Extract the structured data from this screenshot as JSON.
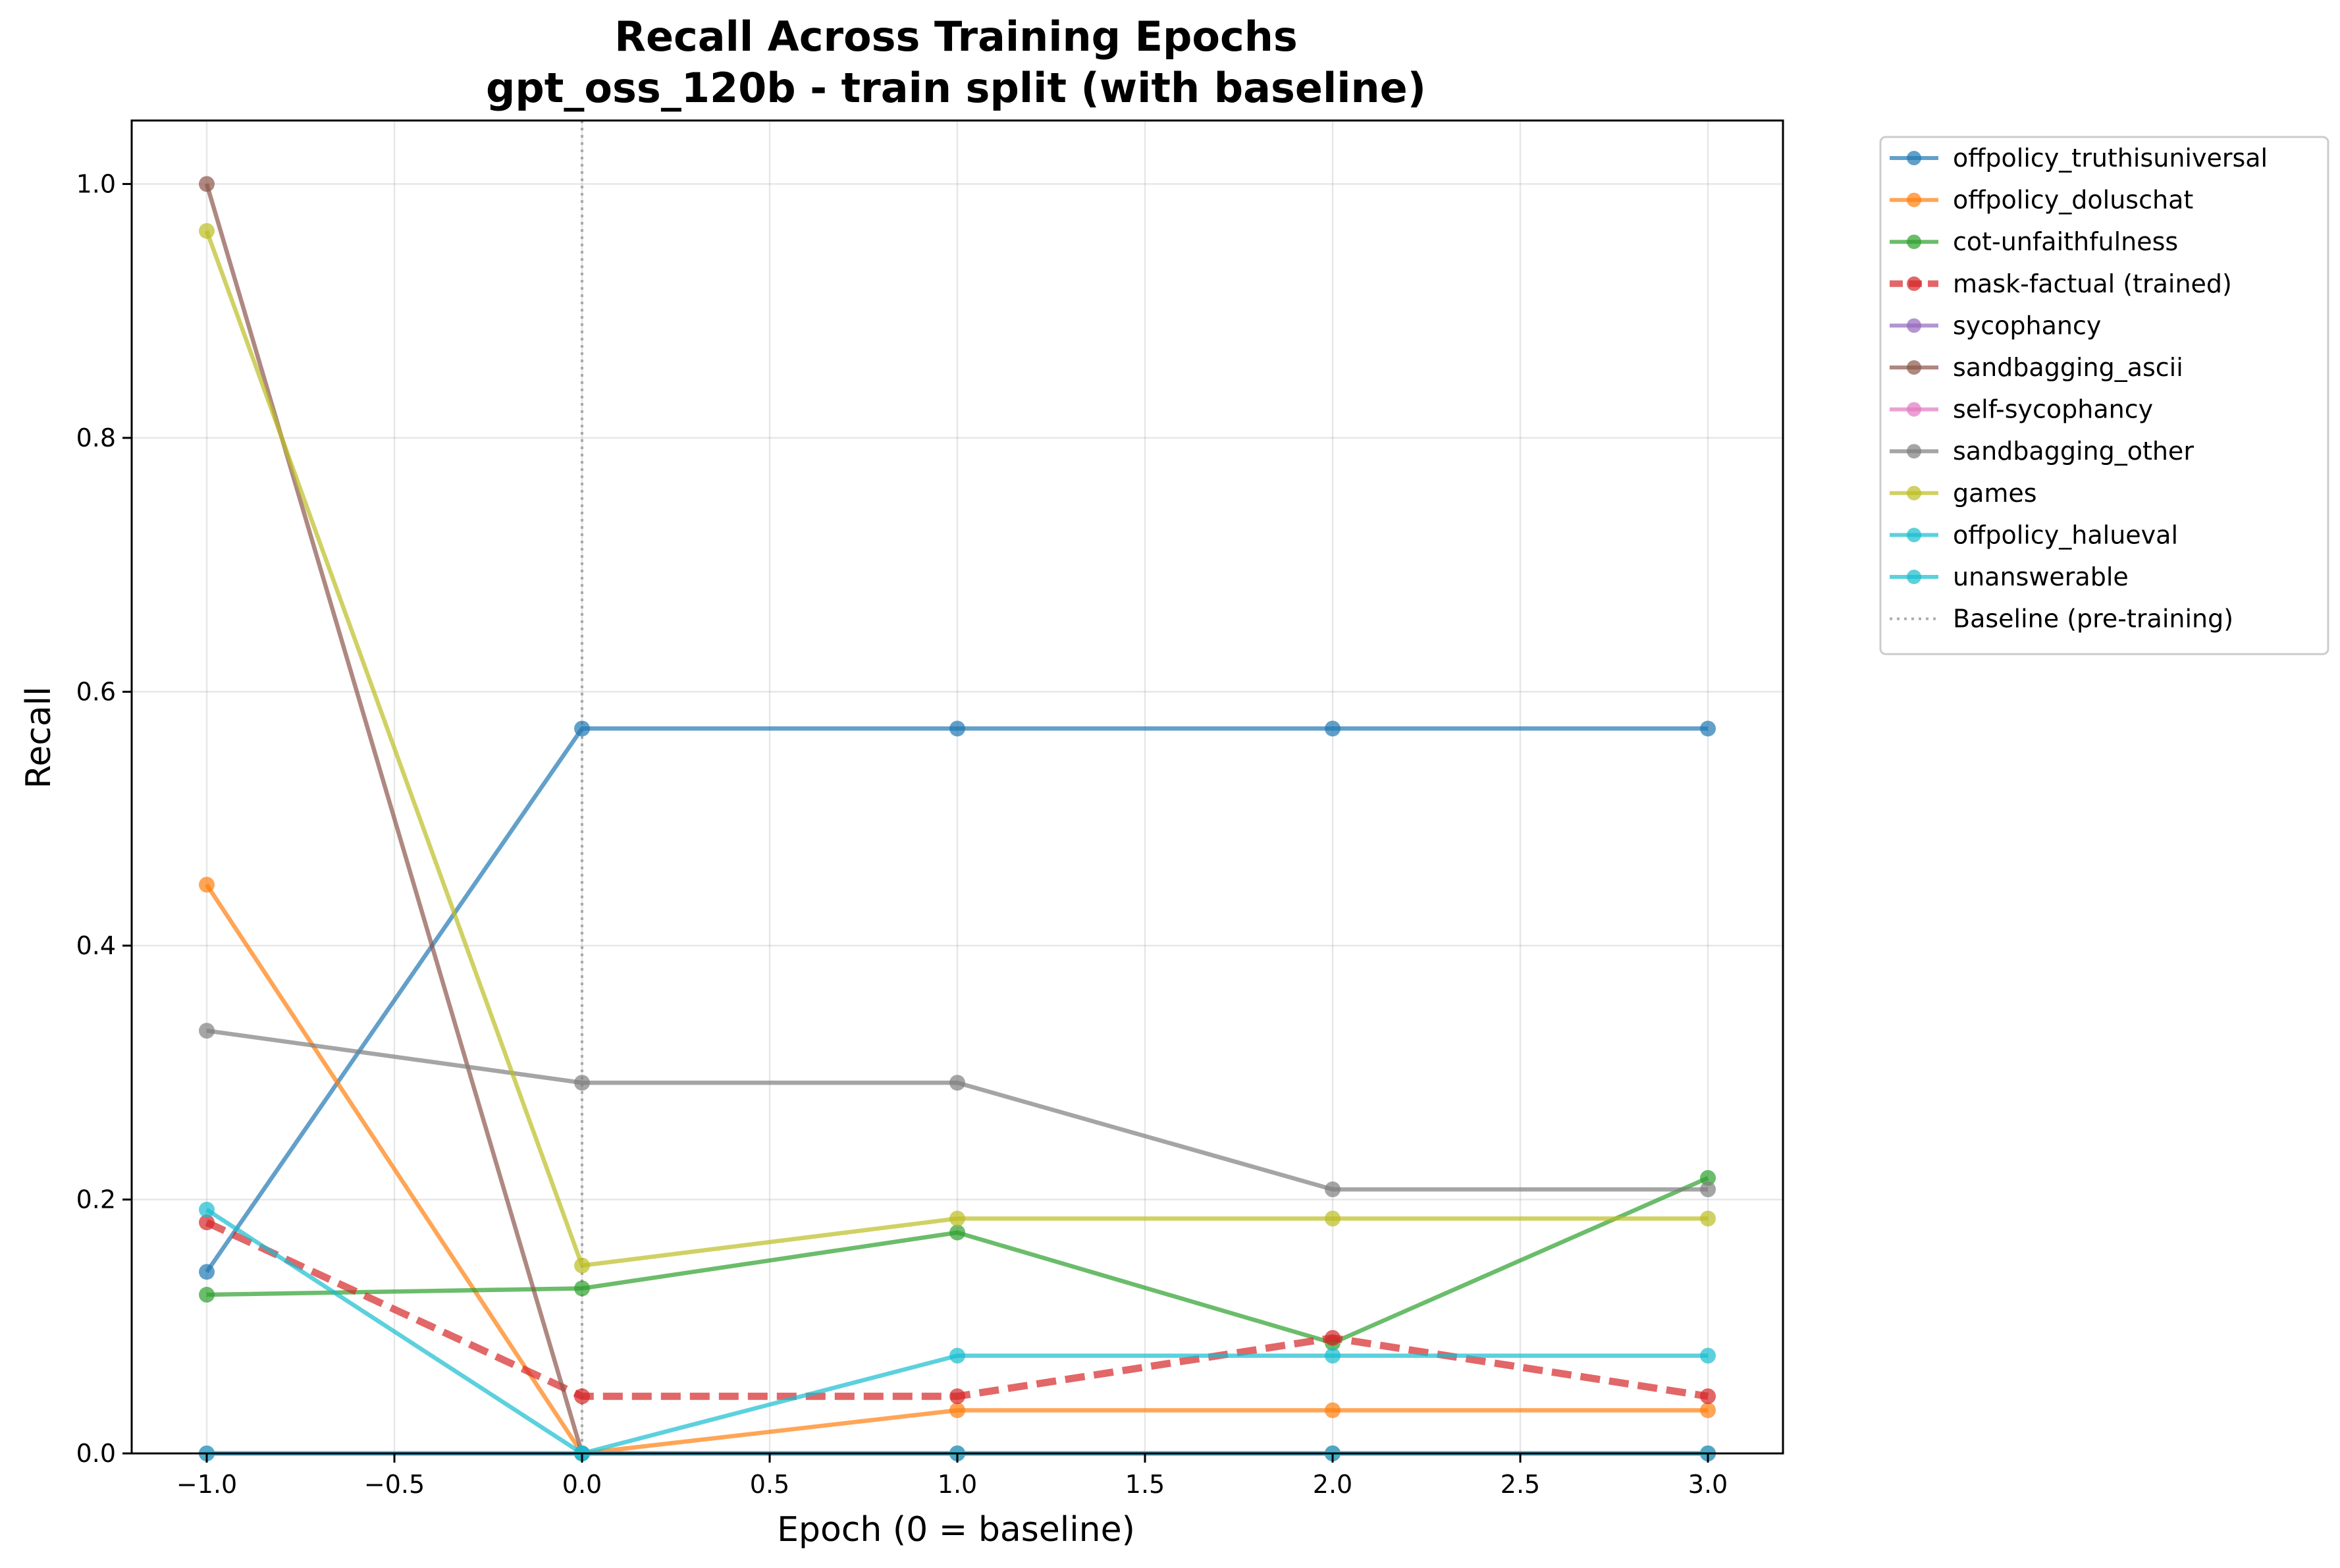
{
  "chart_data": {
    "type": "line",
    "title": "Recall Across Training Epochs",
    "subtitle": "gpt_oss_120b - train split (with baseline)",
    "xlabel": "Epoch (0 = baseline)",
    "ylabel": "Recall",
    "xlim": [
      -1.2,
      3.2
    ],
    "ylim": [
      0.0,
      1.05
    ],
    "x_ticks": [
      -1.0,
      -0.5,
      0.0,
      0.5,
      1.0,
      1.5,
      2.0,
      2.5,
      3.0
    ],
    "x_tick_labels": [
      "−1.0",
      "−0.5",
      "0.0",
      "0.5",
      "1.0",
      "1.5",
      "2.0",
      "2.5",
      "3.0"
    ],
    "y_ticks": [
      0.0,
      0.2,
      0.4,
      0.6,
      0.8,
      1.0
    ],
    "y_tick_labels": [
      "0.0",
      "0.2",
      "0.4",
      "0.6",
      "0.8",
      "1.0"
    ],
    "grid": true,
    "legend_position": "outside-right-top",
    "x": [
      -1,
      0,
      1,
      2,
      3
    ],
    "series": [
      {
        "name": "offpolicy_truthisuniversal",
        "color": "#1f77b4",
        "dashed": false,
        "values": [
          0.143,
          0.571,
          0.571,
          0.571,
          0.571
        ]
      },
      {
        "name": "offpolicy_doluschat",
        "color": "#ff7f0e",
        "dashed": false,
        "values": [
          0.448,
          0.0,
          0.034,
          0.034,
          0.034
        ]
      },
      {
        "name": "cot-unfaithfulness",
        "color": "#2ca02c",
        "dashed": false,
        "values": [
          0.125,
          0.13,
          0.174,
          0.087,
          0.217
        ]
      },
      {
        "name": "mask-factual (trained)",
        "color": "#d62728",
        "dashed": true,
        "values": [
          0.182,
          0.045,
          0.045,
          0.091,
          0.045
        ]
      },
      {
        "name": "sycophancy",
        "color": "#9467bd",
        "dashed": false,
        "values": [
          0.0,
          0.0,
          0.0,
          0.0,
          0.0
        ]
      },
      {
        "name": "sandbagging_ascii",
        "color": "#8c564b",
        "dashed": false,
        "values": [
          1.0,
          0.0,
          0.0,
          0.0,
          0.0
        ]
      },
      {
        "name": "self-sycophancy",
        "color": "#e377c2",
        "dashed": false,
        "values": [
          0.0,
          0.0,
          0.0,
          0.0,
          0.0
        ]
      },
      {
        "name": "sandbagging_other",
        "color": "#7f7f7f",
        "dashed": false,
        "values": [
          0.333,
          0.292,
          0.292,
          0.208,
          0.208
        ]
      },
      {
        "name": "games",
        "color": "#bcbd22",
        "dashed": false,
        "values": [
          0.963,
          0.148,
          0.185,
          0.185,
          0.185
        ]
      },
      {
        "name": "offpolicy_halueval",
        "color": "#17becf",
        "dashed": false,
        "values": [
          0.0,
          0.0,
          0.0,
          0.0,
          0.0
        ]
      },
      {
        "name": "unanswerable",
        "color": "#17becf",
        "dashed": false,
        "values": [
          0.192,
          0.0,
          0.077,
          0.077,
          0.077
        ]
      }
    ],
    "baseline": {
      "name": "Baseline (pre-training)",
      "x": 0.0,
      "color": "#999999"
    }
  }
}
